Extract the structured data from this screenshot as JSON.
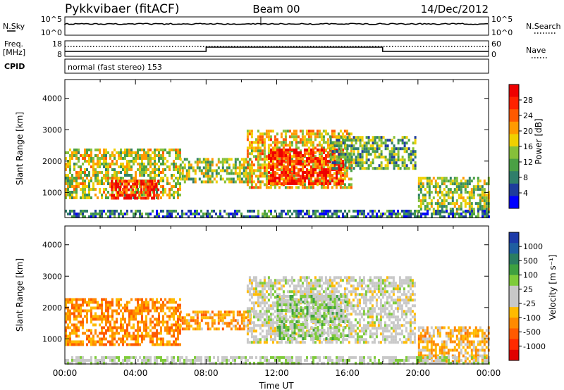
{
  "header": {
    "station": "Pykkvibaer (fitACF)",
    "beam": "Beam 00",
    "date": "14/Dec/2012"
  },
  "top_panels": {
    "nsky_label": "N.Sky",
    "nsearch_label": "N.Search",
    "nsky_ticks": [
      "10^5",
      "10^0"
    ],
    "nsearch_ticks": [
      "10^5",
      "10^0"
    ],
    "freq_label": "Freq.",
    "freq_unit": "[MHz]",
    "freq_ticks": [
      "18",
      "8"
    ],
    "nave_label": "Nave",
    "nave_ticks": [
      "60",
      "0"
    ],
    "cpid_label": "CPID",
    "cpid_text": "normal (fast stereo) 153"
  },
  "axes": {
    "xlabel": "Time UT",
    "x_ticks": [
      "00:00",
      "04:00",
      "08:00",
      "12:00",
      "16:00",
      "20:00",
      "00:00"
    ],
    "ylabel": "Slant Range [km]",
    "y_ticks": [
      "4000",
      "3000",
      "2000",
      "1000"
    ]
  },
  "colorbars": {
    "power": {
      "label": "Power [dB]",
      "ticks": [
        "28",
        "24",
        "20",
        "16",
        "12",
        "8",
        "4"
      ],
      "colors": [
        "#0000ff",
        "#1e3c9c",
        "#2f7e6a",
        "#4aa044",
        "#86c03a",
        "#f0d000",
        "#ff9a00",
        "#ff5a00",
        "#ff2200",
        "#ee0000"
      ]
    },
    "velocity": {
      "label": "Velocity [m s⁻¹]",
      "ticks": [
        "1000",
        "500",
        "100",
        "25",
        "-25",
        "-100",
        "-500",
        "-1000"
      ],
      "colors": [
        "#1c3aa8",
        "#1e5ea0",
        "#2a7d60",
        "#3ea040",
        "#7ecb3a",
        "#c8c8c8",
        "#c8c8c8",
        "#ffbb00",
        "#ff8a00",
        "#ff5a00",
        "#ff2a00",
        "#e00000"
      ]
    }
  },
  "chart_data": {
    "type": "heatmap",
    "x": [
      "00:00",
      "04:00",
      "08:00",
      "12:00",
      "16:00",
      "20:00",
      "00:00"
    ],
    "xlabel": "Time UT",
    "ylabel": "Slant Range [km]",
    "xlim_hours": [
      0,
      24
    ],
    "ylim_km": [
      200,
      4600
    ],
    "panels": [
      {
        "field": "power_db",
        "colorbar_range": [
          0,
          30
        ],
        "regions": [
          {
            "t0": 0.0,
            "t1": 6.5,
            "r0": 800,
            "r1": 2400,
            "level": 0.5
          },
          {
            "t0": 2.6,
            "t1": 5.3,
            "r0": 800,
            "r1": 1400,
            "level": 0.9
          },
          {
            "t0": 6.5,
            "t1": 10.5,
            "r0": 1300,
            "r1": 2100,
            "level": 0.45
          },
          {
            "t0": 10.3,
            "t1": 16.2,
            "r0": 1200,
            "r1": 3000,
            "level": 0.6
          },
          {
            "t0": 11.5,
            "t1": 15.8,
            "r0": 1300,
            "r1": 2400,
            "level": 0.9
          },
          {
            "t0": 15.0,
            "t1": 19.8,
            "r0": 1800,
            "r1": 2800,
            "level": 0.35
          },
          {
            "t0": 20.0,
            "t1": 24.0,
            "r0": 400,
            "r1": 1500,
            "level": 0.45
          },
          {
            "t0": 0.0,
            "t1": 24.0,
            "r0": 200,
            "r1": 450,
            "level": 0.2
          }
        ]
      },
      {
        "field": "velocity_ms",
        "colorbar_range": [
          -1000,
          1000
        ],
        "regions": [
          {
            "t0": 0.0,
            "t1": 6.5,
            "r0": 800,
            "r1": 2300,
            "level": -0.45
          },
          {
            "t0": 6.5,
            "t1": 10.5,
            "r0": 1300,
            "r1": 1900,
            "level": -0.4
          },
          {
            "t0": 10.3,
            "t1": 19.8,
            "r0": 900,
            "r1": 3000,
            "level": 0.0
          },
          {
            "t0": 12.0,
            "t1": 16.0,
            "r0": 1000,
            "r1": 2400,
            "level": 0.2
          },
          {
            "t0": 20.0,
            "t1": 24.0,
            "r0": 300,
            "r1": 1400,
            "level": -0.3
          },
          {
            "t0": 0.0,
            "t1": 24.0,
            "r0": 200,
            "r1": 450,
            "level": 0.1
          }
        ]
      }
    ]
  }
}
